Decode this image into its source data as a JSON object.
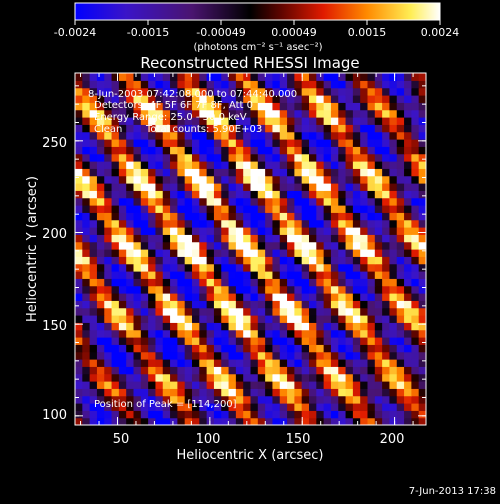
{
  "chart_data": [
    {
      "type": "colorbar",
      "tick_labels": [
        "-0.0024",
        "-0.0015",
        "-0.00049",
        "0.00049",
        "0.0015",
        "0.0024"
      ],
      "range": [
        -0.0024,
        0.0024
      ],
      "units": "(photons cm⁻² s⁻¹ asec⁻²)",
      "colors": [
        "#0000ff",
        "#5a1a9a",
        "#1a0014",
        "#000000",
        "#8a0a00",
        "#ff2200",
        "#ff8a00",
        "#ffff66",
        "#ffffff"
      ]
    },
    {
      "type": "heatmap",
      "title": "Reconstructed RHESSI Image",
      "xlabel": "Heliocentric X (arcsec)",
      "ylabel": "Heliocentric Y (arcsec)",
      "xlim": [
        27,
        217
      ],
      "ylim": [
        95,
        287
      ],
      "xticks": [
        50,
        100,
        150,
        200
      ],
      "yticks": [
        100,
        150,
        200,
        250
      ],
      "annotations": [
        "8-Jun-2003 07:42:08.000 to 07:44:40.000",
        "Detectors: 4F 5F 6F 7F 8F, Att 0",
        "Energy Range: 25.0 - 50.0 keV",
        "Clean",
        "Total counts: 5.90E+03"
      ],
      "peak": {
        "label": "Position of Peak = [114,200]",
        "x": 114,
        "y": 200
      }
    }
  ],
  "footer": {
    "date": "7-Jun-2013 17:38"
  }
}
